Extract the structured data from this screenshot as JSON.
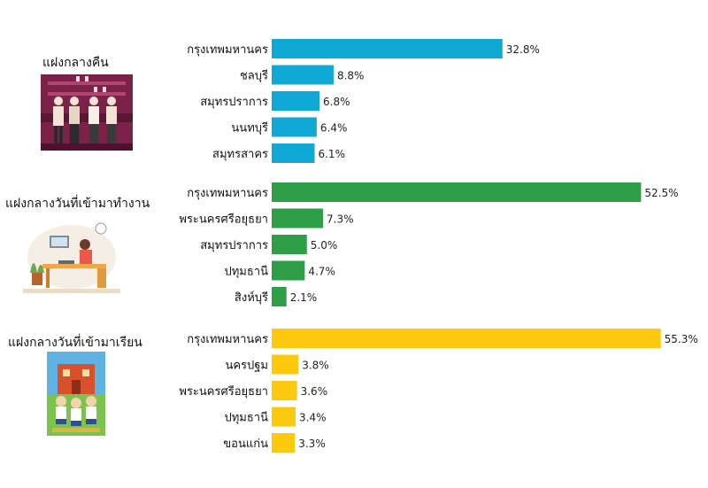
{
  "chart_data": [
    {
      "type": "bar",
      "orientation": "horizontal",
      "group_title": "แฝงกลางคืน",
      "color": "#10A9D5",
      "categories": [
        "กรุงเทพมหานคร",
        "ชลบุรี",
        "สมุทรปราการ",
        "นนทบุรี",
        "สมุทรสาคร"
      ],
      "values": [
        32.8,
        8.8,
        6.8,
        6.4,
        6.1
      ],
      "value_labels": [
        "32.8%",
        "8.8%",
        "6.8%",
        "6.4%",
        "6.1%"
      ],
      "xlim": [
        0,
        60
      ],
      "grid": false
    },
    {
      "type": "bar",
      "orientation": "horizontal",
      "group_title": "แฝงกลางวันที่เข้ามาทำงาน",
      "color": "#2E9E47",
      "categories": [
        "กรุงเทพมหานคร",
        "พระนครศรีอยุธยา",
        "สมุทรปราการ",
        "ปทุมธานี",
        "สิงห์บุรี"
      ],
      "values": [
        52.5,
        7.3,
        5.0,
        4.7,
        2.1
      ],
      "value_labels": [
        "52.5%",
        "7.3%",
        "5.0%",
        "4.7%",
        "2.1%"
      ],
      "xlim": [
        0,
        60
      ],
      "grid": false
    },
    {
      "type": "bar",
      "orientation": "horizontal",
      "group_title": "แฝงกลางวันที่เข้ามาเรียน",
      "color": "#FDC90F",
      "categories": [
        "กรุงเทพมหานคร",
        "นครปฐม",
        "พระนครศรีอยุธยา",
        "ปทุมธานี",
        "ขอนแก่น"
      ],
      "values": [
        55.3,
        3.8,
        3.6,
        3.4,
        3.3
      ],
      "value_labels": [
        "55.3%",
        "3.8%",
        "3.6%",
        "3.4%",
        "3.3%"
      ],
      "xlim": [
        0,
        60
      ],
      "grid": false
    }
  ],
  "illustrations": [
    {
      "icon": "nightlife-bar-scene-icon",
      "colors": {
        "bg": "#7A2248",
        "people": "#F2E3D5",
        "shelf": "#B0456E"
      }
    },
    {
      "icon": "office-worker-desk-icon",
      "colors": {
        "desk": "#F2A64A",
        "person": "#E8594A",
        "plant": "#6BA84F"
      }
    },
    {
      "icon": "school-children-icon",
      "colors": {
        "sky": "#5EB3E4",
        "building": "#D9502C",
        "ground": "#7CC34D"
      }
    }
  ]
}
